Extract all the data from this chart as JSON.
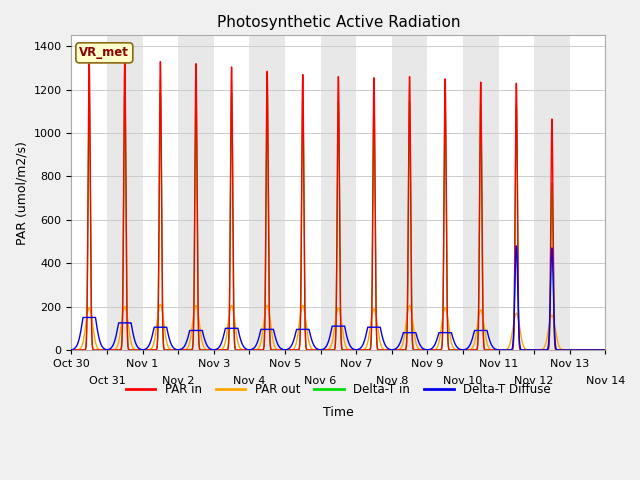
{
  "title": "Photosynthetic Active Radiation",
  "ylabel": "PAR (umol/m2/s)",
  "xlabel": "Time",
  "ylim": [
    0,
    1450
  ],
  "x_tick_labels": [
    "Oct 30",
    "Oct 31",
    "Nov 1",
    "Nov 2",
    "Nov 3",
    "Nov 4",
    "Nov 5",
    "Nov 6",
    "Nov 7",
    "Nov 8",
    "Nov 9",
    "Nov 10",
    "Nov 11",
    "Nov 12",
    "Nov 13",
    "Nov 14"
  ],
  "label_box_text": "VR_met",
  "colors": {
    "par_in": "#ff0000",
    "par_out": "#ffa500",
    "delta_t_in": "#00dd00",
    "delta_t_diffuse": "#0000ee"
  },
  "legend": [
    "PAR in",
    "PAR out",
    "Delta-T in",
    "Delta-T Diffuse"
  ],
  "par_in_peaks": [
    1320,
    1340,
    1330,
    1320,
    1305,
    1285,
    1270,
    1260,
    1255,
    1260,
    1250,
    1235,
    1230,
    1065,
    0
  ],
  "par_out_peaks": [
    195,
    200,
    210,
    205,
    205,
    205,
    205,
    195,
    190,
    205,
    195,
    185,
    170,
    160,
    0
  ],
  "delta_t_in_peaks": [
    1185,
    1195,
    1185,
    1185,
    1185,
    1185,
    1165,
    1145,
    1135,
    1145,
    1140,
    1135,
    1130,
    770,
    0
  ],
  "delta_t_diff_peaks": [
    150,
    125,
    105,
    90,
    100,
    95,
    95,
    110,
    105,
    80,
    80,
    90,
    480,
    470,
    0
  ],
  "par_in_sigma": 0.03,
  "par_out_sigma": 0.095,
  "dt_in_sigma": 0.032,
  "dt_diff_sigma": 0.085,
  "dt_diff_flat_vals": [
    150,
    125,
    105,
    90,
    100,
    95,
    95,
    110,
    105,
    80,
    80,
    90,
    0,
    0,
    0
  ],
  "background_color": "#f0f0f0",
  "plot_bg_light": "#ffffff",
  "plot_bg_dark": "#e8e8e8",
  "grid_color": "#d0d0d0",
  "title_fontsize": 11,
  "axis_fontsize": 9,
  "tick_fontsize": 8
}
